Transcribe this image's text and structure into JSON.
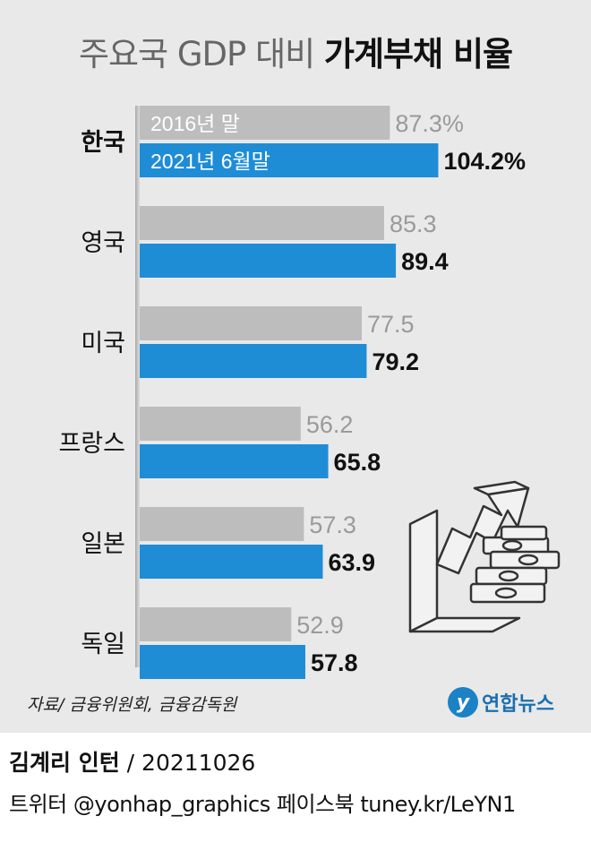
{
  "title": {
    "light": "주요국 GDP 대비 ",
    "bold": "가계부채 비율"
  },
  "legend": {
    "series_2016": "2016년 말",
    "series_2021": "2021년 6월말"
  },
  "colors": {
    "series_2016": "#bdbdbd",
    "series_2021": "#1f8dd6",
    "panel_bg": "#e9e9e9"
  },
  "chart_data": {
    "type": "bar",
    "orientation": "horizontal",
    "title": "주요국 GDP 대비 가계부채 비율",
    "categories": [
      "한국",
      "영국",
      "미국",
      "프랑스",
      "일본",
      "독일"
    ],
    "series": [
      {
        "name": "2016년 말",
        "values": [
          87.3,
          85.3,
          77.5,
          56.2,
          57.3,
          52.9
        ],
        "labels": [
          "87.3%",
          "85.3",
          "77.5",
          "56.2",
          "57.3",
          "52.9"
        ]
      },
      {
        "name": "2021년 6월말",
        "values": [
          104.2,
          89.4,
          79.2,
          65.8,
          63.9,
          57.8
        ],
        "labels": [
          "104.2%",
          "89.4",
          "79.2",
          "65.8",
          "63.9",
          "57.8"
        ]
      }
    ],
    "legend_position": "inside-bars"
  },
  "source": "자료/ 금융위원회, 금융감독원",
  "logo": {
    "text": "연합뉴스",
    "icon": "yonhap-logo-icon"
  },
  "credit": {
    "name": "김계리 인턴",
    "sep": " / ",
    "date": "20211026"
  },
  "social": "트위터 @yonhap_graphics  페이스북 tuney.kr/LeYN1",
  "illustration": {
    "icon": "rising-arrow-money-icon"
  }
}
